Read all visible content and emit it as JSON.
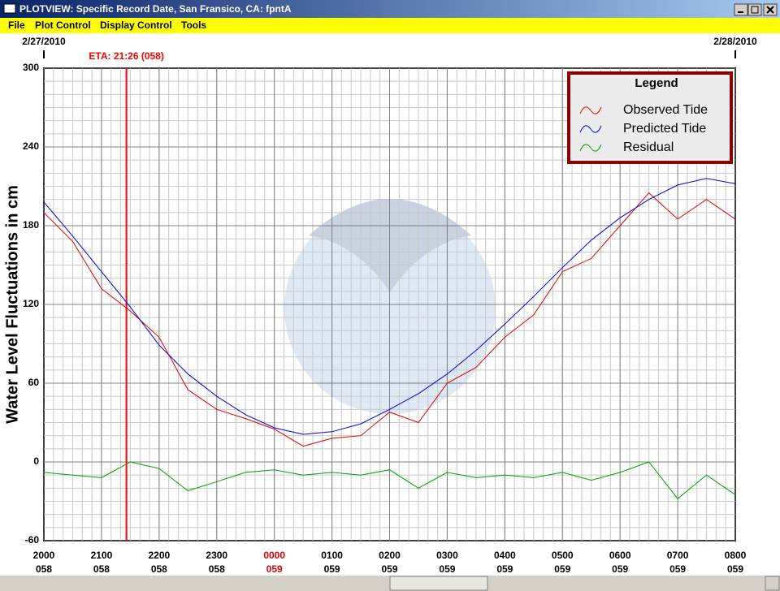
{
  "window": {
    "title": "PLOTVIEW: Specific Record Date, San Fransico, CA: fpntA",
    "menu": [
      "File",
      "Plot Control",
      "Display Control",
      "Tools"
    ]
  },
  "chart_data": {
    "type": "line",
    "ylabel": "Water Level Fluctuations in cm",
    "dates": [
      {
        "value": 0,
        "label": "2/27/2010"
      },
      {
        "value": 12,
        "label": "2/28/2010"
      }
    ],
    "annotation": {
      "text": "ETA: 21:26 (058)",
      "x": 1.433,
      "color": "#ff0000"
    },
    "x": [
      0,
      0.5,
      1,
      1.5,
      2,
      2.5,
      3,
      3.5,
      4,
      4.5,
      5,
      5.5,
      6,
      6.5,
      7,
      7.5,
      8,
      8.5,
      9,
      9.5,
      10,
      10.5,
      11,
      11.5,
      12
    ],
    "xlim": [
      0,
      12
    ],
    "xticks": [
      {
        "value": 0,
        "label": "2000"
      },
      {
        "value": 1,
        "label": "2100"
      },
      {
        "value": 2,
        "label": "2200"
      },
      {
        "value": 3,
        "label": "2300"
      },
      {
        "value": 4,
        "label": "0000"
      },
      {
        "value": 5,
        "label": "0100"
      },
      {
        "value": 6,
        "label": "0200"
      },
      {
        "value": 7,
        "label": "0300"
      },
      {
        "value": 8,
        "label": "0400"
      },
      {
        "value": 9,
        "label": "0500"
      },
      {
        "value": 10,
        "label": "0600"
      },
      {
        "value": 11,
        "label": "0700"
      },
      {
        "value": 12,
        "label": "0800"
      }
    ],
    "xtick_days": [
      "058",
      "058",
      "058",
      "058",
      "059",
      "059",
      "059",
      "059",
      "059",
      "059",
      "059",
      "059",
      "059"
    ],
    "highlight_tick": 4,
    "highlight_color": "#dd0000",
    "ylim": [
      -60,
      300
    ],
    "yticks": [
      -60,
      0,
      60,
      120,
      180,
      240,
      300
    ],
    "grid": true,
    "minor_grid": true,
    "legend": {
      "title": "Legend",
      "position": "upper right"
    },
    "series": [
      {
        "name": "Observed Tide",
        "color": "#e00000",
        "values": [
          190,
          168,
          132,
          115,
          95,
          55,
          40,
          33,
          25,
          12,
          18,
          20,
          38,
          30,
          60,
          72,
          95,
          112,
          145,
          155,
          180,
          205,
          185,
          200,
          185
        ]
      },
      {
        "name": "Predicted Tide",
        "color": "#0000e0",
        "values": [
          198,
          172,
          145,
          118,
          89,
          67,
          50,
          36,
          26,
          21,
          23,
          29,
          40,
          52,
          67,
          85,
          105,
          126,
          148,
          169,
          186,
          200,
          211,
          216,
          212
        ]
      },
      {
        "name": "Residual",
        "color": "#00a000",
        "values": [
          -8,
          -10,
          -12,
          0,
          -5,
          -22,
          -15,
          -8,
          -6,
          -10,
          -8,
          -10,
          -6,
          -20,
          -8,
          -12,
          -10,
          -12,
          -8,
          -14,
          -8,
          0,
          -28,
          -10,
          -25
        ]
      }
    ]
  }
}
